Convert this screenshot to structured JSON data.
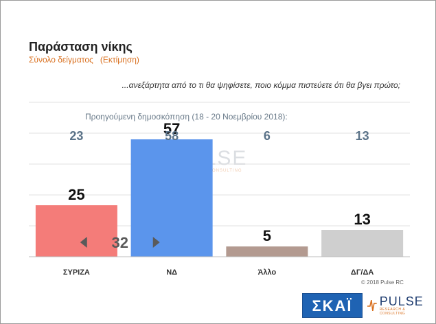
{
  "header": {
    "title": "Παράσταση νίκης",
    "subtitle": "Σύνολο δείγματος",
    "subtitle_note": "(Εκτίμηση)",
    "question": "...ανεξάρτητα από το τι θα ψηφίσετε, ποιο κόμμα πιστεύετε ότι θα βγει πρώτο;",
    "previous_survey_label": "Προηγούμενη δημοσκόπηση (18 - 20 Νοεμβρίου 2018):"
  },
  "footer": {
    "copyright": "© 2018 Pulse RC",
    "logo_left": "ΣΚΑΪ",
    "logo_right": "PULSE",
    "logo_right_sub": "RESEARCH & CONSULTING"
  },
  "watermark": {
    "text": "PULSE",
    "sub": "RESEARCH & CONSULTING"
  },
  "chart_data": {
    "type": "bar",
    "categories": [
      "ΣΥΡΙΖΑ",
      "ΝΔ",
      "Άλλο",
      "ΔΓ/ΔΑ"
    ],
    "values": [
      25,
      57,
      5,
      13
    ],
    "previous_values": [
      23,
      58,
      6,
      13
    ],
    "colors": [
      "#f47c79",
      "#5b95ec",
      "#b39a90",
      "#cfcfcf"
    ],
    "ylim": [
      0,
      75
    ],
    "grid": true,
    "annotation": {
      "label": "32",
      "color": "#5a5a5a"
    }
  }
}
